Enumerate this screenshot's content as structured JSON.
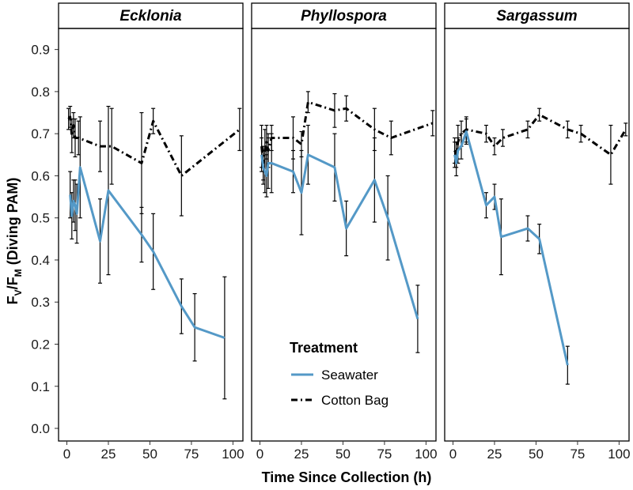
{
  "chart_data": {
    "type": "line",
    "xlabel": "Time Since Collection (h)",
    "ylabel": {
      "main": "F",
      "sub_v": "V",
      "slash": "/F",
      "sub_m": "M",
      "rest": " (Diving PAM)"
    },
    "ylim": [
      -0.03,
      0.95
    ],
    "yticks": [
      0.0,
      0.1,
      0.2,
      0.3,
      0.4,
      0.5,
      0.6,
      0.7,
      0.8,
      0.9
    ],
    "ytick_labels": [
      "0.0",
      "0.1",
      "0.2",
      "0.3",
      "0.4",
      "0.5",
      "0.6",
      "0.7",
      "0.8",
      "0.9"
    ],
    "xticks": [
      0,
      25,
      50,
      75,
      100
    ],
    "xtick_labels": [
      "0",
      "25",
      "50",
      "75",
      "100"
    ],
    "xlim": [
      -5,
      106
    ],
    "legend": {
      "title": "Treatment",
      "entries": [
        {
          "label": "Seawater",
          "color": "#5499c7",
          "dash": "solid"
        },
        {
          "label": "Cotton Bag",
          "color": "#000000",
          "dash": "dashdot"
        }
      ]
    },
    "panels": [
      {
        "title": "Ecklonia",
        "series": [
          {
            "name": "Cotton Bag",
            "x": [
              1,
              2,
              3,
              4,
              5,
              7,
              20,
              27,
              45,
              52,
              69,
              104
            ],
            "y": [
              0.735,
              0.74,
              0.695,
              0.72,
              0.69,
              0.69,
              0.67,
              0.67,
              0.63,
              0.73,
              0.6,
              0.71
            ],
            "err": [
              0.025,
              0.025,
              0.04,
              0.03,
              0.045,
              0.04,
              0.06,
              0.09,
              0.12,
              0.03,
              0.095,
              0.05
            ]
          },
          {
            "name": "Seawater",
            "x": [
              2,
              3,
              4,
              5,
              6,
              8,
              20,
              25,
              45,
              52,
              69,
              77,
              95
            ],
            "y": [
              0.555,
              0.505,
              0.54,
              0.53,
              0.51,
              0.62,
              0.445,
              0.565,
              0.46,
              0.42,
              0.29,
              0.24,
              0.215
            ],
            "err": [
              0.055,
              0.055,
              0.05,
              0.06,
              0.07,
              0.12,
              0.1,
              0.2,
              0.065,
              0.09,
              0.065,
              0.08,
              0.145
            ]
          }
        ]
      },
      {
        "title": "Phyllospora",
        "series": [
          {
            "name": "Cotton Bag",
            "x": [
              1,
              2,
              3,
              4,
              5,
              7,
              20,
              25,
              29,
              45,
              52,
              69,
              79,
              104
            ],
            "y": [
              0.67,
              0.63,
              0.66,
              0.68,
              0.66,
              0.69,
              0.69,
              0.675,
              0.775,
              0.755,
              0.76,
              0.71,
              0.69,
              0.725
            ],
            "err": [
              0.05,
              0.04,
              0.05,
              0.04,
              0.04,
              0.03,
              0.05,
              0.03,
              0.025,
              0.04,
              0.03,
              0.05,
              0.04,
              0.03
            ]
          },
          {
            "name": "Seawater",
            "x": [
              1,
              2,
              3,
              4,
              5,
              7,
              20,
              25,
              29,
              45,
              52,
              69,
              77,
              95
            ],
            "y": [
              0.65,
              0.62,
              0.61,
              0.6,
              0.63,
              0.63,
              0.61,
              0.56,
              0.65,
              0.62,
              0.475,
              0.59,
              0.5,
              0.26
            ],
            "err": [
              0.04,
              0.04,
              0.05,
              0.05,
              0.06,
              0.07,
              0.05,
              0.1,
              0.07,
              0.08,
              0.065,
              0.1,
              0.1,
              0.08
            ]
          }
        ]
      },
      {
        "title": "Sargassum",
        "series": [
          {
            "name": "Cotton Bag",
            "x": [
              1,
              2,
              3,
              5,
              8,
              20,
              25,
              30,
              45,
              52,
              69,
              77,
              95,
              104
            ],
            "y": [
              0.66,
              0.65,
              0.68,
              0.7,
              0.71,
              0.7,
              0.67,
              0.69,
              0.71,
              0.745,
              0.71,
              0.7,
              0.65,
              0.71
            ],
            "err": [
              0.03,
              0.03,
              0.04,
              0.03,
              0.03,
              0.02,
              0.02,
              0.02,
              0.02,
              0.015,
              0.02,
              0.02,
              0.07,
              0.015
            ]
          },
          {
            "name": "Seawater",
            "x": [
              1,
              2,
              3,
              5,
              8,
              20,
              25,
              29,
              45,
              52,
              69
            ],
            "y": [
              0.65,
              0.63,
              0.66,
              0.67,
              0.705,
              0.53,
              0.55,
              0.455,
              0.475,
              0.45,
              0.15
            ],
            "err": [
              0.03,
              0.03,
              0.03,
              0.03,
              0.03,
              0.03,
              0.03,
              0.09,
              0.03,
              0.035,
              0.045
            ]
          }
        ]
      }
    ]
  }
}
